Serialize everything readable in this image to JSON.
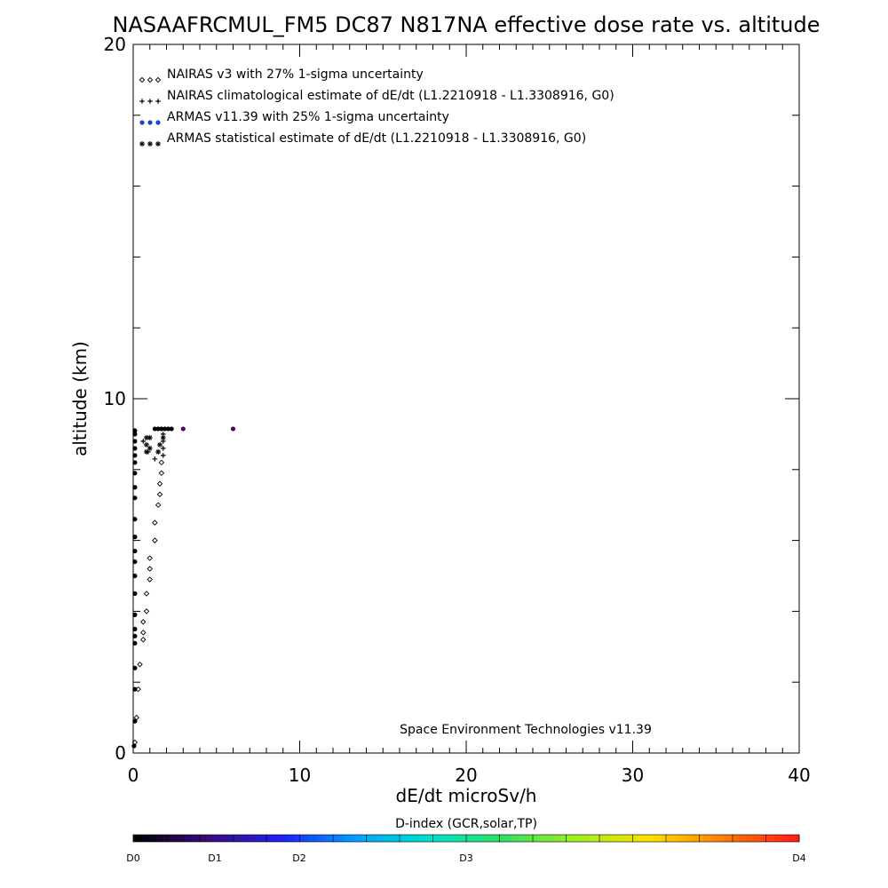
{
  "chart_data": {
    "type": "scatter",
    "title": "NASAAFRCMUL_FM5 DC87 N817NA effective dose rate vs. altitude",
    "xlabel": "dE/dt microSv/h",
    "ylabel": "altitude (km)",
    "xlim": [
      0,
      40
    ],
    "ylim": [
      0,
      20
    ],
    "x_ticks": [
      "0",
      "10",
      "20",
      "30",
      "40"
    ],
    "y_ticks": [
      "0",
      "10",
      "20"
    ],
    "grid": false,
    "legend_position": "top-left",
    "credit": "Space Environment Technologies v11.39",
    "legend": [
      {
        "label": "NAIRAS v3 with 27% 1-sigma uncertainty",
        "marker": "diamond",
        "color": "#000000"
      },
      {
        "label": "NAIRAS climatological estimate of dE/dt (L1.2210918 - L1.3308916, G0)",
        "marker": "plus",
        "color": "#000000"
      },
      {
        "label": "ARMAS v11.39 with 25% 1-sigma uncertainty",
        "marker": "dot",
        "color": "#1f3fd8"
      },
      {
        "label": "ARMAS statistical estimate of dE/dt (L1.2210918 - L1.3308916, G0)",
        "marker": "asterisk",
        "color": "#000000"
      }
    ],
    "series": [
      {
        "name": "NAIRAS v3 with 27% 1-sigma uncertainty",
        "marker": "diamond",
        "points": [
          [
            0.1,
            0.3
          ],
          [
            0.2,
            1.0
          ],
          [
            0.3,
            1.8
          ],
          [
            0.4,
            2.5
          ],
          [
            0.6,
            3.2
          ],
          [
            0.6,
            3.4
          ],
          [
            0.6,
            3.7
          ],
          [
            0.8,
            4.0
          ],
          [
            0.8,
            4.5
          ],
          [
            1.0,
            4.9
          ],
          [
            1.0,
            5.2
          ],
          [
            1.0,
            5.5
          ],
          [
            1.3,
            6.0
          ],
          [
            1.3,
            6.5
          ],
          [
            1.5,
            7.0
          ],
          [
            1.6,
            7.3
          ],
          [
            1.6,
            7.6
          ],
          [
            1.7,
            7.9
          ],
          [
            1.7,
            8.2
          ]
        ]
      },
      {
        "name": "NAIRAS climatological estimate of dE/dt (L1.2210918 - L1.3308916, G0)",
        "marker": "plus",
        "points": [
          [
            0.6,
            8.8
          ],
          [
            0.9,
            8.5
          ],
          [
            1.3,
            8.3
          ],
          [
            1.8,
            8.4
          ],
          [
            1.8,
            8.6
          ],
          [
            1.8,
            8.8
          ],
          [
            1.8,
            9.0
          ]
        ]
      },
      {
        "name": "ARMAS v11.39 with 25% 1-sigma uncertainty",
        "marker": "dot",
        "points": [
          [
            0.05,
            0.2
          ],
          [
            0.1,
            0.9
          ],
          [
            0.1,
            1.8
          ],
          [
            0.1,
            2.4
          ],
          [
            0.1,
            3.1
          ],
          [
            0.1,
            3.3
          ],
          [
            0.1,
            3.5
          ],
          [
            0.1,
            3.9
          ],
          [
            0.1,
            4.5
          ],
          [
            0.1,
            5.0
          ],
          [
            0.1,
            5.4
          ],
          [
            0.1,
            5.7
          ],
          [
            0.1,
            6.1
          ],
          [
            0.1,
            6.6
          ],
          [
            0.1,
            7.2
          ],
          [
            0.1,
            7.5
          ],
          [
            0.1,
            7.9
          ],
          [
            0.1,
            8.2
          ],
          [
            0.1,
            8.4
          ],
          [
            0.1,
            8.6
          ],
          [
            0.1,
            8.8
          ],
          [
            0.1,
            9.0
          ],
          [
            0.1,
            9.1
          ],
          [
            1.3,
            9.15
          ],
          [
            1.5,
            9.15
          ],
          [
            1.7,
            9.15
          ],
          [
            1.9,
            9.15
          ],
          [
            2.1,
            9.15
          ],
          [
            2.3,
            9.15
          ],
          [
            3.0,
            9.15
          ],
          [
            6.0,
            9.15
          ]
        ]
      },
      {
        "name": "ARMAS statistical estimate of dE/dt (L1.2210918 - L1.3308916, G0)",
        "marker": "asterisk",
        "points": [
          [
            0.8,
            8.5
          ],
          [
            0.8,
            8.7
          ],
          [
            0.8,
            8.9
          ],
          [
            1.0,
            8.9
          ],
          [
            1.0,
            8.6
          ],
          [
            1.6,
            8.7
          ],
          [
            1.8,
            8.9
          ],
          [
            1.5,
            8.5
          ]
        ]
      }
    ],
    "colorbar": {
      "title": "D-index (GCR,solar,TP)",
      "labels": [
        "D0",
        "D1",
        "D2",
        "D3",
        "D4"
      ],
      "stops": [
        "#000000",
        "#3a0a7a",
        "#2020ee",
        "#00a0ff",
        "#00e0d0",
        "#30e060",
        "#a0f020",
        "#ffe000",
        "#ff7a00",
        "#ff1a1a"
      ]
    }
  }
}
